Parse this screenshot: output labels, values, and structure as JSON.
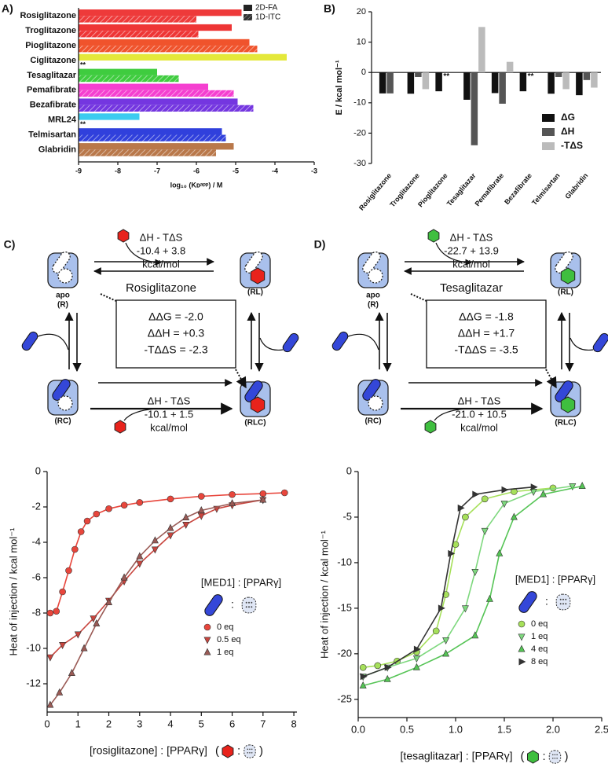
{
  "chart_data": [
    {
      "type": "hbar",
      "panel": "A)",
      "categories": [
        "Rosiglitazone",
        "Troglitazone",
        "Pioglitazone",
        "Ciglitazone",
        "Tesaglitazar",
        "Pemafibrate",
        "Bezafibrate",
        "MRL24",
        "Telmisartan",
        "Glabridin"
      ],
      "colors": [
        "#ee3a3a",
        "#ee3535",
        "#f0532c",
        "#e4e83a",
        "#3fcc3f",
        "#f53fd0",
        "#7436e0",
        "#3ccbf0",
        "#3040dc",
        "#b9784a"
      ],
      "series": [
        {
          "name": "2D-FA",
          "color": "#222222",
          "values": [
            -4.85,
            -5.1,
            -4.65,
            -3.7,
            -7.0,
            -5.7,
            -4.95,
            -7.45,
            -5.35,
            -5.05
          ]
        },
        {
          "name": "1D-ITC",
          "color": "#444444",
          "values": [
            -6.0,
            -5.95,
            -4.45,
            null,
            -6.45,
            -5.05,
            -4.55,
            null,
            -5.25,
            -5.5
          ]
        }
      ],
      "annotations": [
        null,
        null,
        null,
        "**",
        null,
        null,
        null,
        "**",
        null,
        null
      ],
      "xlim": [
        -9,
        -3
      ],
      "xticks": [
        -9,
        -8,
        -7,
        -6,
        -5,
        -4,
        -3
      ],
      "x_label": "log₁₀ (Kᴅᵃᵖᵖ) / M",
      "legend": "upper right"
    },
    {
      "type": "bar",
      "panel": "B)",
      "categories": [
        "Rosiglitazone",
        "Troglitazone",
        "Pioglitazone",
        "Tesaglitazar",
        "Pemafibrate",
        "Bezafibrate",
        "Telmisartan",
        "Glabridin"
      ],
      "series": [
        {
          "name": "ΔG",
          "color": "#111111",
          "values": [
            -6.9,
            -7.0,
            -6.2,
            -9.0,
            -6.8,
            -6.2,
            -7.0,
            -7.5
          ]
        },
        {
          "name": "ΔH",
          "color": "#555555",
          "values": [
            -6.9,
            -1.5,
            null,
            -24.0,
            -10.3,
            null,
            -1.5,
            -2.5
          ]
        },
        {
          "name": "-TΔS",
          "color": "#bbbbbb",
          "values": [
            0,
            -5.5,
            null,
            15.0,
            3.5,
            null,
            -5.5,
            -5.0
          ]
        }
      ],
      "annotations": [
        null,
        null,
        "**",
        null,
        null,
        "**",
        null,
        null
      ],
      "ylim": [
        -30,
        20
      ],
      "yticks": [
        -30,
        -20,
        -10,
        0,
        10,
        20
      ],
      "y_label": "E / kcal mol⁻¹",
      "legend": "lower right"
    },
    {
      "type": "scatter",
      "x_label": "[rosiglitazone] : [PPARγ]",
      "x_label_icons": [
        "(",
        ":",
        ")"
      ],
      "y_label": "Heat of injection / kcal mol⁻¹",
      "legend_title": "[MED1] : [PPARγ]",
      "legend_icon_text": ":",
      "legend": "lower right",
      "ligand_color": "#e8231c",
      "xlim": [
        0,
        8.1
      ],
      "xticks": [
        0,
        1,
        2,
        3,
        4,
        5,
        6,
        7,
        8
      ],
      "ylim": [
        -13.6,
        0
      ],
      "yticks": [
        0,
        -2,
        -4,
        -6,
        -8,
        -10,
        -12
      ],
      "series": [
        {
          "name": "0 eq",
          "color": "#e8463c",
          "marker": "circle",
          "x": [
            0.1,
            0.3,
            0.5,
            0.7,
            0.9,
            1.1,
            1.3,
            1.6,
            2.0,
            2.5,
            3.0,
            4.0,
            5.0,
            6.0,
            7.0,
            7.7
          ],
          "values": [
            -8.0,
            -7.9,
            -6.8,
            -5.6,
            -4.4,
            -3.4,
            -2.8,
            -2.4,
            -2.1,
            -1.9,
            -1.75,
            -1.55,
            -1.4,
            -1.3,
            -1.25,
            -1.2
          ]
        },
        {
          "name": "0.5 eq",
          "color": "#c8453e",
          "marker": "triangle-down",
          "x": [
            0.1,
            0.5,
            1.0,
            1.5,
            2.0,
            2.5,
            3.0,
            3.5,
            4.0,
            4.5,
            5.0,
            5.5,
            6.0,
            7.0
          ],
          "values": [
            -10.5,
            -9.8,
            -9.2,
            -8.3,
            -7.3,
            -6.2,
            -5.2,
            -4.4,
            -3.6,
            -3.0,
            -2.5,
            -2.1,
            -1.9,
            -1.6
          ]
        },
        {
          "name": "1 eq",
          "color": "#9a5a55",
          "marker": "triangle-up",
          "x": [
            0.1,
            0.4,
            0.8,
            1.2,
            1.6,
            2.0,
            2.5,
            3.0,
            3.5,
            4.0,
            4.5,
            5.0,
            6.0,
            7.0
          ],
          "values": [
            -13.2,
            -12.5,
            -11.4,
            -10.0,
            -8.6,
            -7.4,
            -6.0,
            -4.8,
            -3.9,
            -3.2,
            -2.6,
            -2.2,
            -1.8,
            -1.6
          ]
        }
      ]
    },
    {
      "type": "scatter",
      "x_label": "[tesaglitazar] : [PPARγ]",
      "x_label_icons": [
        "(",
        ":",
        ")"
      ],
      "y_label": "Heat of injection / kcal mol⁻¹",
      "legend_title": "[MED1] : [PPARγ]",
      "legend_icon_text": ":",
      "legend": "lower right",
      "ligand_color": "#3fbf3f",
      "xlim": [
        0,
        2.5
      ],
      "xticks": [
        {
          "value": 0,
          "label": "0.0"
        },
        0.5,
        {
          "value": 1,
          "label": "1.0"
        },
        1.5,
        {
          "value": 2,
          "label": "2.0"
        },
        2.5
      ],
      "ylim": [
        -27,
        0
      ],
      "yticks": [
        0,
        -5,
        -10,
        -15,
        -20,
        -25
      ],
      "series": [
        {
          "name": "0 eq",
          "color": "#a6e05a",
          "marker": "circle",
          "x": [
            0.05,
            0.2,
            0.4,
            0.6,
            0.8,
            0.9,
            1.0,
            1.1,
            1.3,
            1.6,
            2.0
          ],
          "values": [
            -21.5,
            -21.3,
            -20.8,
            -19.8,
            -17.5,
            -13.5,
            -8.0,
            -5.0,
            -3.0,
            -2.2,
            -1.8
          ]
        },
        {
          "name": "1 eq",
          "color": "#7ed87e",
          "marker": "triangle-down",
          "x": [
            0.05,
            0.3,
            0.6,
            0.9,
            1.1,
            1.2,
            1.3,
            1.5,
            1.8,
            2.2
          ],
          "values": [
            -22.5,
            -21.5,
            -20.5,
            -18.5,
            -15.0,
            -11.0,
            -6.5,
            -3.5,
            -2.2,
            -1.6
          ]
        },
        {
          "name": "4 eq",
          "color": "#55c455",
          "marker": "triangle-up",
          "x": [
            0.05,
            0.3,
            0.6,
            0.9,
            1.2,
            1.35,
            1.45,
            1.6,
            1.9,
            2.3
          ],
          "values": [
            -23.5,
            -22.8,
            -21.5,
            -20.0,
            -18.0,
            -14.0,
            -9.0,
            -5.0,
            -2.5,
            -1.6
          ]
        },
        {
          "name": "8 eq",
          "color": "#333333",
          "marker": "triangle-right",
          "x": [
            0.05,
            0.3,
            0.6,
            0.85,
            0.95,
            1.05,
            1.2,
            1.5,
            1.8
          ],
          "values": [
            -22.5,
            -21.5,
            -19.5,
            -15.0,
            -9.0,
            -4.0,
            -2.5,
            -2.0,
            -1.7
          ]
        }
      ]
    }
  ],
  "diagrams": [
    {
      "panel": "C)",
      "top_energy": [
        "ΔH - TΔS",
        "-10.4 + 3.8",
        "kcal/mol"
      ],
      "apo": "apo",
      "states": [
        "(R)",
        "(RL)",
        "(RC)",
        "(RLC)"
      ],
      "ligand": "Rosiglitazone",
      "box": [
        "ΔΔG = -2.0",
        "ΔΔH = +0.3",
        "-TΔΔS = -2.3"
      ],
      "bottom_energy": [
        "ΔH - TΔS",
        "-10.1 + 1.5",
        "kcal/mol"
      ],
      "ligand_color": "#e8231c"
    },
    {
      "panel": "D)",
      "top_energy": [
        "ΔH - TΔS",
        "-22.7 + 13.9",
        "kcal/mol"
      ],
      "apo": "apo",
      "states": [
        "(R)",
        "(RL)",
        "(RC)",
        "(RLC)"
      ],
      "ligand": "Tesaglitazar",
      "box": [
        "ΔΔG =  -1.8",
        "ΔΔH = +1.7",
        "-TΔΔS =  -3.5"
      ],
      "bottom_energy": [
        "ΔH - TΔS",
        "-21.0 + 10.5",
        "kcal/mol"
      ],
      "ligand_color": "#3fbf3f"
    }
  ]
}
